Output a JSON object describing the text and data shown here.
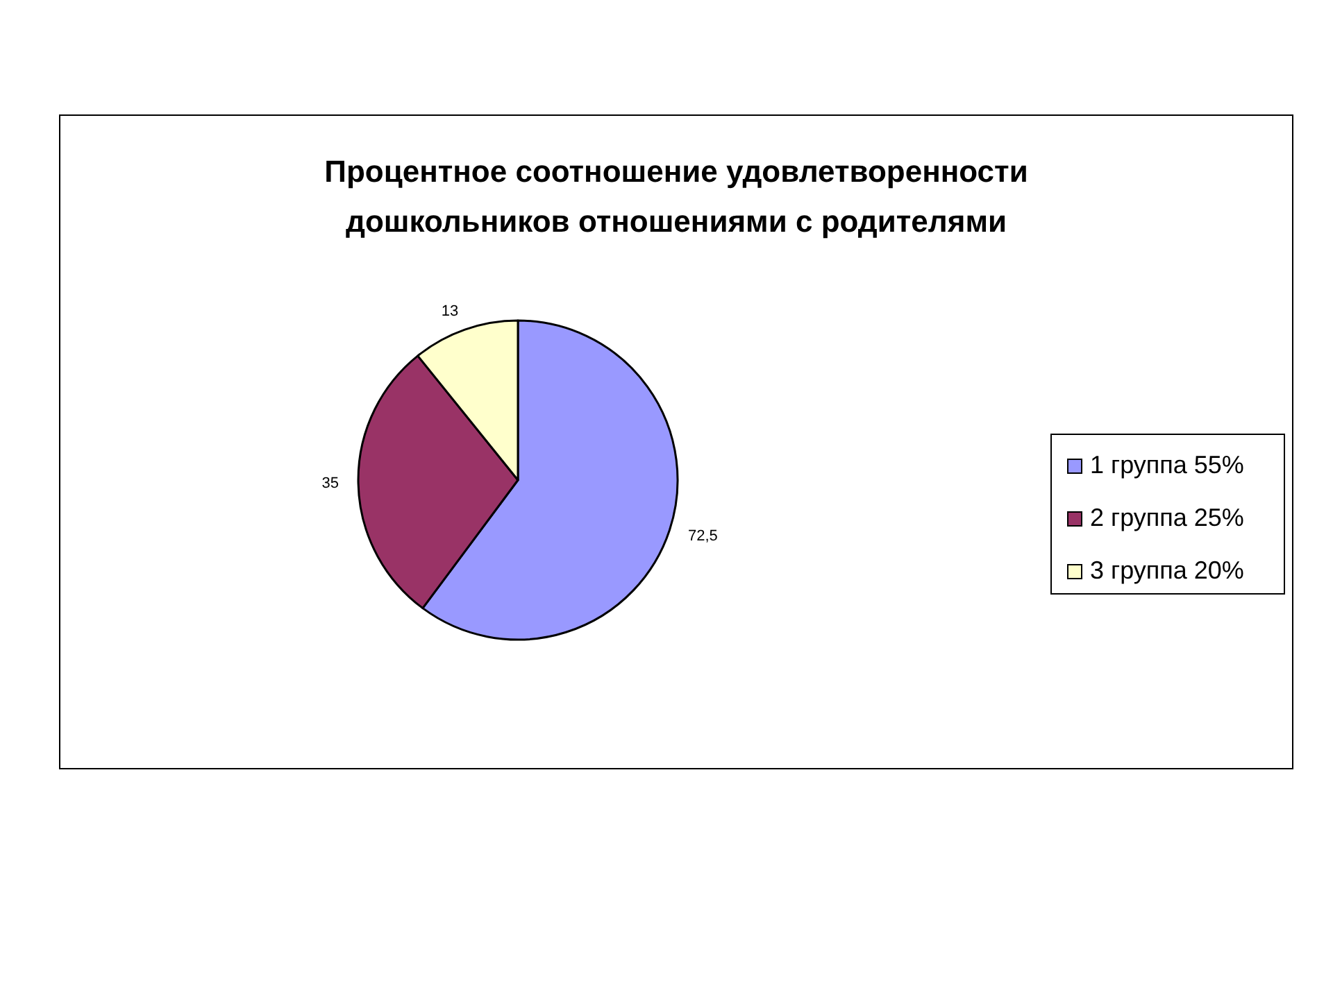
{
  "chart_data": {
    "type": "pie",
    "title": "Процентное соотношение удовлетворенности дошкольников отношениями с родителями",
    "categories": [
      "1 группа 55%",
      "2 группа 25%",
      "3 группа 20%"
    ],
    "values": [
      72.5,
      35,
      13
    ],
    "value_labels": [
      "72,5",
      "35",
      "13"
    ],
    "colors": [
      "#9999ff",
      "#993366",
      "#ffffcc"
    ],
    "legend": "right"
  }
}
